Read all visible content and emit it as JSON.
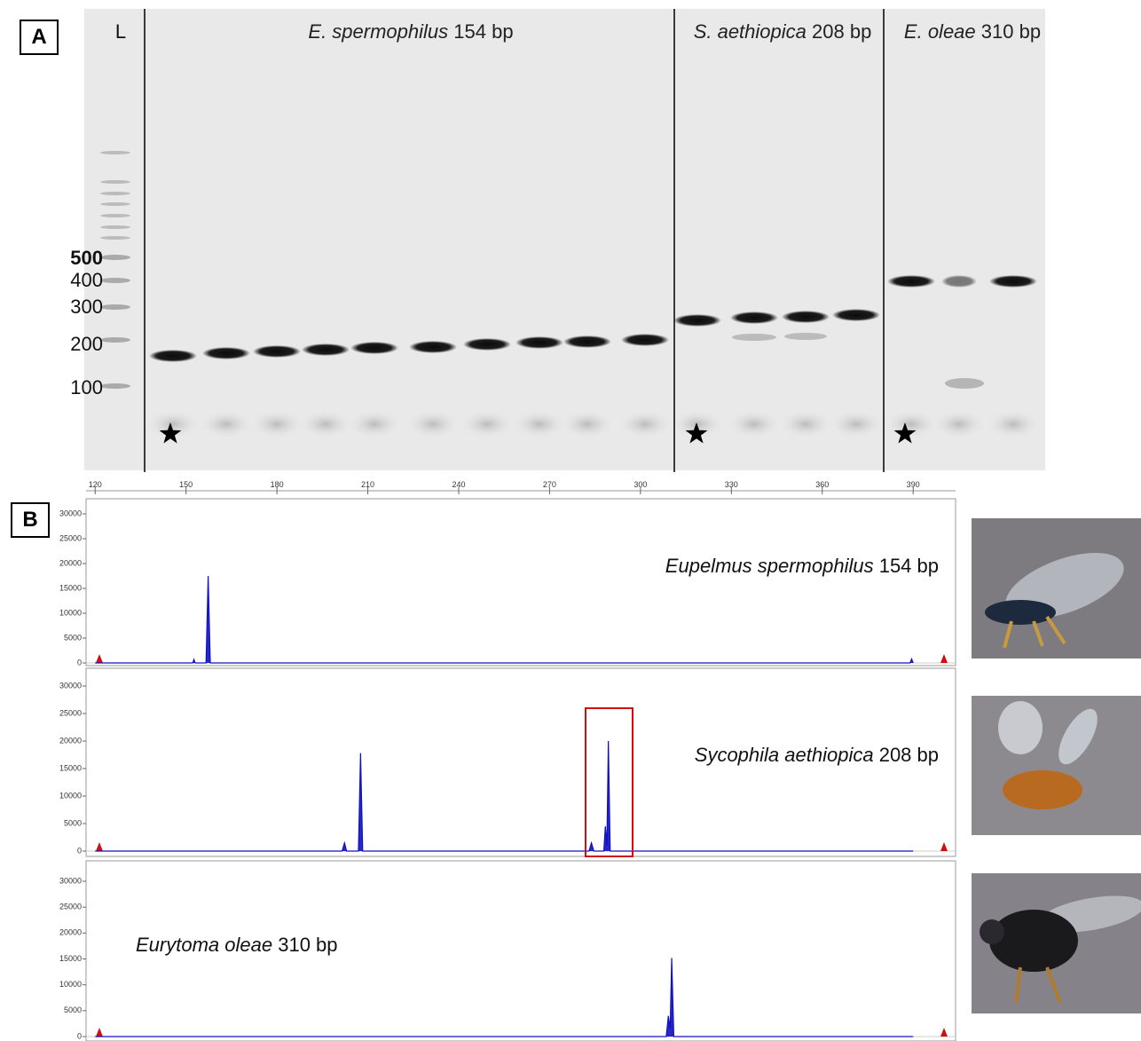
{
  "panel_a": {
    "label": "A",
    "ladder_label": "L",
    "ladder_sizes": [
      "500",
      "400",
      "300",
      "200",
      "100"
    ],
    "lane_groups": [
      {
        "species": "E. spermophilus",
        "size": "154 bp"
      },
      {
        "species": "S. aethiopica",
        "size": "208 bp"
      },
      {
        "species": "E. oleae",
        "size": "310 bp"
      }
    ]
  },
  "panel_b": {
    "label": "B"
  },
  "chart_data": [
    {
      "type": "line",
      "species": "Eupelmus spermophilus",
      "size": "154 bp",
      "color": "#1010c0",
      "x": [
        120,
        152.2,
        152.6,
        153,
        156.6,
        157.3,
        158,
        389,
        389.5,
        390
      ],
      "values": [
        0,
        0,
        700,
        0,
        0,
        17500,
        0,
        0,
        800,
        0
      ],
      "xlim": [
        117,
        404
      ],
      "xticks": [
        120,
        150,
        180,
        210,
        240,
        270,
        300,
        330,
        360,
        390
      ],
      "ylim": [
        0,
        32000
      ],
      "yticks": [
        0,
        5000,
        10000,
        15000,
        20000,
        25000,
        30000
      ]
    },
    {
      "type": "line",
      "species": "Sycophila aethiopica",
      "size": "208 bp",
      "color": "#1010c0",
      "x": [
        120,
        201.5,
        202.3,
        203,
        206.9,
        207.6,
        208.3,
        283,
        283.8,
        284.6,
        287.9,
        288.4,
        288.9,
        289.4,
        290,
        390
      ],
      "values": [
        0,
        0,
        1500,
        0,
        0,
        17800,
        0,
        0,
        1500,
        0,
        0,
        4500,
        1000,
        20000,
        0,
        0
      ],
      "xlim": [
        117,
        404
      ],
      "ylim": [
        0,
        32000
      ],
      "yticks": [
        0,
        5000,
        10000,
        15000,
        20000,
        25000,
        30000
      ]
    },
    {
      "type": "line",
      "species": "Eurytoma oleae",
      "size": "310 bp",
      "color": "#1010c0",
      "x": [
        120,
        308.5,
        309.2,
        309.8,
        310.3,
        311,
        390
      ],
      "values": [
        0,
        0,
        4000,
        1500,
        15200,
        0,
        0
      ],
      "xlim": [
        117,
        404
      ],
      "ylim": [
        0,
        32000
      ],
      "yticks": [
        0,
        5000,
        10000,
        15000,
        20000,
        25000,
        30000
      ]
    }
  ]
}
